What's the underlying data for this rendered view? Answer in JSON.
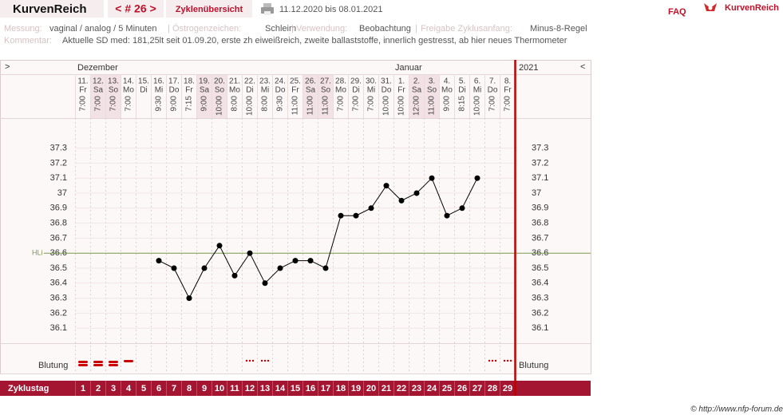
{
  "header": {
    "logo": "KurvenReich",
    "cycle_nav": "< # 26 >",
    "overview": "Zyklenübersicht",
    "date_range": "11.12.2020 bis 08.01.2021",
    "faq": "FAQ",
    "brand": "KurvenReich"
  },
  "info": {
    "separator": "|",
    "fields": [
      {
        "label": "Messung:",
        "value": "vaginal / analog / 5 Minuten"
      },
      {
        "label": "Östrogenzeichen:",
        "value": "Schleim"
      },
      {
        "label": "Verwendung:",
        "value": "Beobachtung"
      },
      {
        "label": "Freigabe Zyklusanfang:",
        "value": "Minus-8-Regel"
      }
    ],
    "comment_label": "Kommentar:",
    "comment": "Aktuelle SD med: 181,25lt seit 01.09.20, erste zh eiweißreich, zweite ballaststoffe, innerlich gestresst, ab hier neues Thermometer"
  },
  "chart_data": {
    "type": "line",
    "nav_left": ">",
    "nav_right": "<",
    "months": [
      "Dezember",
      "Januar"
    ],
    "year": "2021",
    "categories": [
      "11.",
      "12.",
      "13.",
      "14.",
      "15.",
      "16.",
      "17.",
      "18.",
      "19.",
      "20.",
      "21.",
      "22.",
      "23.",
      "24.",
      "25.",
      "26.",
      "27.",
      "28.",
      "29.",
      "30.",
      "31.",
      "1.",
      "2.",
      "3.",
      "4.",
      "5.",
      "6.",
      "7.",
      "8."
    ],
    "weekdays": [
      "Fr",
      "Sa",
      "So",
      "Mo",
      "Di",
      "Mi",
      "Do",
      "Fr",
      "Sa",
      "So",
      "Mo",
      "Di",
      "Mi",
      "Do",
      "Fr",
      "Sa",
      "So",
      "Mo",
      "Di",
      "Mi",
      "Do",
      "Fr",
      "Sa",
      "So",
      "Mo",
      "Di",
      "Mi",
      "Do",
      "Fr"
    ],
    "times": [
      "7:00",
      "7:00",
      "7:00",
      "7:00",
      null,
      "9:30",
      "9:00",
      "7:15",
      "9:00",
      "10:00",
      "8:00",
      "10:00",
      "8:00",
      "9:30",
      "11:00",
      "11:00",
      "11:00",
      "7:00",
      "7:00",
      "7:00",
      "10:00",
      "10:00",
      "12:00",
      "11:00",
      "9:00",
      "8:15",
      "10:00",
      "7:00",
      "7:00"
    ],
    "values": [
      null,
      null,
      null,
      null,
      null,
      36.55,
      36.5,
      36.3,
      36.5,
      36.65,
      36.45,
      36.6,
      36.4,
      36.5,
      36.55,
      36.55,
      36.5,
      36.85,
      36.85,
      36.9,
      37.05,
      36.95,
      37.0,
      37.1,
      36.85,
      36.9,
      37.1,
      null,
      null
    ],
    "color": "#000000",
    "ylim": [
      36.0,
      37.5
    ],
    "yticks": [
      36.1,
      36.2,
      36.3,
      36.4,
      36.5,
      36.6,
      36.7,
      36.8,
      36.9,
      37,
      37.1,
      37.2,
      37.3
    ],
    "grid": true,
    "reference_line": {
      "label": "HLi",
      "value": 36.6,
      "color": "#7a9a4a"
    },
    "bleeding_label": "Blutung",
    "bleeding": [
      3,
      3,
      3,
      2,
      null,
      null,
      null,
      null,
      null,
      null,
      null,
      1,
      1,
      null,
      null,
      null,
      null,
      null,
      null,
      null,
      null,
      null,
      null,
      null,
      null,
      null,
      null,
      1,
      1
    ],
    "bleeding_color": "#cc0000",
    "cycle_day_label": "Zyklustag",
    "cycle_days": [
      1,
      2,
      3,
      4,
      5,
      6,
      7,
      8,
      9,
      10,
      11,
      12,
      13,
      14,
      15,
      16,
      17,
      18,
      19,
      20,
      21,
      22,
      23,
      24,
      25,
      26,
      27,
      28,
      29
    ]
  },
  "footer": {
    "copyright": "© http://www.nfp-forum.de"
  }
}
